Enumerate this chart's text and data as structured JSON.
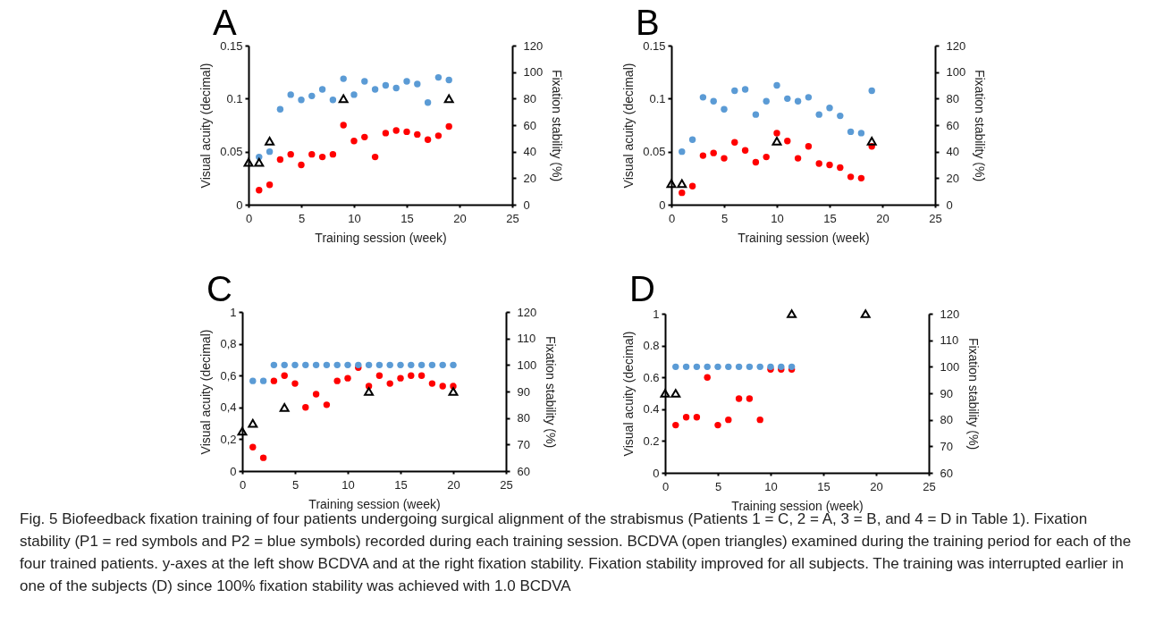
{
  "chart_data": [
    {
      "type": "scatter",
      "title": "A",
      "xlabel": "Training session (week)",
      "ylabel": "Visual acuity (decimal)",
      "y2label": "Fixation stability (%)",
      "xlim": [
        0,
        25
      ],
      "xticks": [
        0,
        5,
        10,
        15,
        20,
        25
      ],
      "ylim": [
        0,
        0.15
      ],
      "yticks": [
        0,
        0.05,
        0.1,
        0.15
      ],
      "y2lim": [
        0,
        120
      ],
      "y2ticks": [
        0,
        20,
        40,
        60,
        80,
        100,
        120
      ],
      "series": [
        {
          "color": "#ff0000",
          "marker": "circle",
          "axis": "y2",
          "x": [
            1,
            2,
            3,
            4,
            5,
            6,
            7,
            8,
            9,
            10,
            11,
            12,
            13,
            14,
            15,
            16,
            17,
            18,
            19
          ],
          "values": [
            11,
            15,
            34,
            38,
            30,
            38,
            36,
            38,
            60,
            48,
            51,
            36,
            54,
            56,
            55,
            53,
            49,
            52,
            59
          ]
        },
        {
          "color": "#5b9bd5",
          "marker": "circle",
          "axis": "y2",
          "x": [
            1,
            2,
            3,
            4,
            5,
            6,
            7,
            8,
            9,
            10,
            11,
            12,
            13,
            14,
            15,
            16,
            17,
            18,
            19
          ],
          "values": [
            36,
            40,
            72,
            83,
            79,
            82,
            87,
            79,
            95,
            83,
            93,
            87,
            90,
            88,
            93,
            91,
            77,
            96,
            94
          ]
        },
        {
          "color": "#000000",
          "marker": "triangle",
          "x": [
            0,
            1,
            2,
            9,
            19
          ],
          "values": [
            0.04,
            0.04,
            0.06,
            0.1,
            0.1
          ]
        }
      ]
    },
    {
      "type": "scatter",
      "title": "B",
      "xlabel": "Training session (week)",
      "ylabel": "Visual acuity (decimal)",
      "y2label": "Fixation stability (%)",
      "xlim": [
        0,
        25
      ],
      "xticks": [
        0,
        5,
        10,
        15,
        20,
        25
      ],
      "ylim": [
        0,
        0.15
      ],
      "yticks": [
        0,
        0.05,
        0.1,
        0.15
      ],
      "y2lim": [
        0,
        120
      ],
      "y2ticks": [
        0,
        20,
        40,
        60,
        80,
        100,
        120
      ],
      "series": [
        {
          "color": "#ff0000",
          "marker": "circle",
          "axis": "y2",
          "x": [
            1,
            2,
            3,
            4,
            5,
            6,
            7,
            8,
            9,
            10,
            11,
            12,
            13,
            14,
            15,
            16,
            17,
            18,
            19
          ],
          "values": [
            9,
            14,
            37,
            39,
            35,
            47,
            41,
            32,
            36,
            54,
            48,
            35,
            44,
            31,
            30,
            28,
            21,
            20,
            44
          ]
        },
        {
          "color": "#5b9bd5",
          "marker": "circle",
          "axis": "y2",
          "x": [
            1,
            2,
            3,
            4,
            5,
            6,
            7,
            8,
            9,
            10,
            11,
            12,
            13,
            14,
            15,
            16,
            17,
            18,
            19
          ],
          "values": [
            40,
            49,
            81,
            78,
            72,
            86,
            87,
            68,
            78,
            90,
            80,
            78,
            81,
            68,
            73,
            67,
            55,
            54,
            86
          ]
        },
        {
          "color": "#000000",
          "marker": "triangle",
          "x": [
            0,
            1,
            10,
            19
          ],
          "values": [
            0.02,
            0.02,
            0.06,
            0.06
          ]
        }
      ]
    },
    {
      "type": "scatter",
      "title": "C",
      "xlabel": "Training session (week)",
      "ylabel": "Visual acuity (decimal)",
      "y2label": "Fixation stability (%)",
      "xlim": [
        0,
        25
      ],
      "xticks": [
        0,
        5,
        10,
        15,
        20,
        25
      ],
      "ylim": [
        0,
        1
      ],
      "yticks": [
        0,
        {
          "value": 0.2,
          "label": "0,2"
        },
        {
          "value": 0.4,
          "label": "0,4"
        },
        {
          "value": 0.6,
          "label": "0,6"
        },
        {
          "value": 0.8,
          "label": "0,8"
        },
        1
      ],
      "y2lim": [
        60,
        120
      ],
      "y2ticks": [
        60,
        70,
        80,
        90,
        100,
        110,
        120
      ],
      "series": [
        {
          "color": "#ff0000",
          "marker": "circle",
          "axis": "y2",
          "x": [
            1,
            2,
            3,
            4,
            5,
            6,
            7,
            8,
            9,
            10,
            11,
            12,
            13,
            14,
            15,
            16,
            17,
            18,
            19,
            20
          ],
          "values": [
            69,
            65,
            94,
            96,
            93,
            84,
            89,
            85,
            94,
            95,
            99,
            92,
            96,
            93,
            95,
            96,
            96,
            93,
            92,
            92
          ]
        },
        {
          "color": "#5b9bd5",
          "marker": "circle",
          "axis": "y2",
          "x": [
            1,
            2,
            3,
            4,
            5,
            6,
            7,
            8,
            9,
            10,
            11,
            12,
            13,
            14,
            15,
            16,
            17,
            18,
            19,
            20
          ],
          "values": [
            94,
            94,
            100,
            100,
            100,
            100,
            100,
            100,
            100,
            100,
            100,
            100,
            100,
            100,
            100,
            100,
            100,
            100,
            100,
            100
          ]
        },
        {
          "color": "#000000",
          "marker": "triangle",
          "x": [
            0,
            1,
            4,
            12,
            20
          ],
          "values": [
            0.25,
            0.3,
            0.4,
            0.5,
            0.5
          ]
        }
      ]
    },
    {
      "type": "scatter",
      "title": "D",
      "xlabel": "Training session (week)",
      "ylabel": "Visual acuity (decimal)",
      "y2label": "Fixation stability (%)",
      "xlim": [
        0,
        25
      ],
      "xticks": [
        0,
        5,
        10,
        15,
        20,
        25
      ],
      "ylim": [
        0,
        1
      ],
      "yticks": [
        0,
        0.2,
        0.4,
        0.6,
        0.8,
        1
      ],
      "y2lim": [
        60,
        120
      ],
      "y2ticks": [
        60,
        70,
        80,
        90,
        100,
        110,
        120
      ],
      "series": [
        {
          "color": "#ff0000",
          "marker": "circle",
          "axis": "y2",
          "x": [
            1,
            2,
            3,
            4,
            5,
            6,
            7,
            8,
            9,
            10,
            11,
            12
          ],
          "values": [
            78,
            81,
            81,
            96,
            78,
            80,
            88,
            88,
            80,
            99,
            99,
            99
          ]
        },
        {
          "color": "#5b9bd5",
          "marker": "circle",
          "axis": "y2",
          "x": [
            1,
            2,
            3,
            4,
            5,
            6,
            7,
            8,
            9,
            10,
            11,
            12
          ],
          "values": [
            100,
            100,
            100,
            100,
            100,
            100,
            100,
            100,
            100,
            100,
            100,
            100
          ]
        },
        {
          "color": "#000000",
          "marker": "triangle",
          "x": [
            0,
            1,
            12,
            19
          ],
          "values": [
            0.5,
            0.5,
            1.0,
            1.0
          ]
        }
      ],
      "annotations": [
        "Fig. 5 Biofeedback fixation training of four patients undergoing surgical alignment of the strabismus (Patients 1 = C, 2 = A, 3 = B, and 4 = D in Table 1). Fixation stability (P1 = red symbols and P2 = blue symbols) recorded during each training session. BCDVA (open triangles) examined during the training period for each of the four trained patients. y-axes at the left show BCDVA and at the right fixation stability. Fixation stability improved for all subjects. The training was interrupted earlier in one of the subjects (D) since 100% fixation stability was achieved with 1.0 BCDVA"
      ]
    }
  ]
}
